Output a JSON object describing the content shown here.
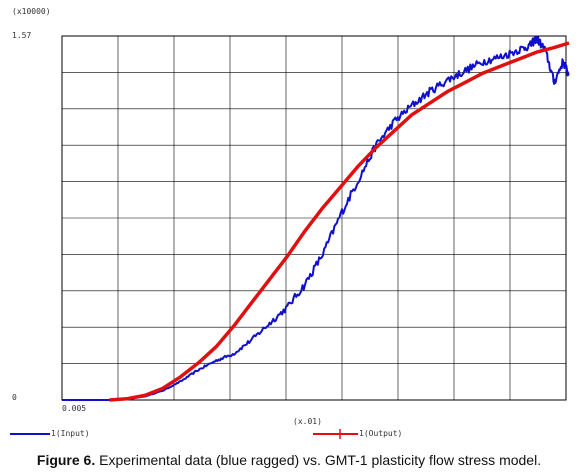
{
  "chart_data": {
    "type": "line",
    "y_multiplier_label": "(x10000)",
    "x_multiplier_label": "(x.01)",
    "ytick_top": "1.57",
    "ytick_bottom": "0",
    "xtick_left": "0.005",
    "ylim": [
      0,
      1.57
    ],
    "xlim": [
      0.005,
      0.09
    ],
    "grid": true,
    "legend_placement": "bottom",
    "series": [
      {
        "name": "1(Input)",
        "color": "#1010cc",
        "x": [
          0.005,
          0.013,
          0.016,
          0.019,
          0.022,
          0.025,
          0.028,
          0.031,
          0.034,
          0.037,
          0.04,
          0.043,
          0.046,
          0.049,
          0.052,
          0.055,
          0.058,
          0.061,
          0.064,
          0.067,
          0.07,
          0.073,
          0.076,
          0.079,
          0.082,
          0.084,
          0.085,
          0.0865,
          0.088,
          0.0895,
          0.0905
        ],
        "y": [
          0,
          0,
          0.005,
          0.015,
          0.04,
          0.08,
          0.13,
          0.17,
          0.2,
          0.26,
          0.33,
          0.4,
          0.5,
          0.63,
          0.8,
          0.95,
          1.1,
          1.2,
          1.27,
          1.33,
          1.38,
          1.42,
          1.46,
          1.48,
          1.51,
          1.53,
          1.56,
          1.51,
          1.37,
          1.46,
          1.4
        ]
      },
      {
        "name": "1(Output)",
        "color": "#e01010",
        "x": [
          0.013,
          0.016,
          0.019,
          0.022,
          0.025,
          0.028,
          0.031,
          0.034,
          0.037,
          0.04,
          0.043,
          0.046,
          0.049,
          0.052,
          0.055,
          0.058,
          0.061,
          0.064,
          0.067,
          0.07,
          0.073,
          0.076,
          0.079,
          0.082,
          0.085,
          0.088,
          0.0905
        ],
        "y": [
          0,
          0.005,
          0.02,
          0.05,
          0.1,
          0.16,
          0.23,
          0.32,
          0.42,
          0.52,
          0.62,
          0.73,
          0.83,
          0.92,
          1.01,
          1.09,
          1.16,
          1.23,
          1.28,
          1.33,
          1.37,
          1.41,
          1.44,
          1.47,
          1.5,
          1.52,
          1.54
        ]
      }
    ],
    "caption_prefix": "Figure 6.",
    "caption_body": "Experimental data (blue ragged) vs. GMT-1 plasticity flow stress model."
  }
}
